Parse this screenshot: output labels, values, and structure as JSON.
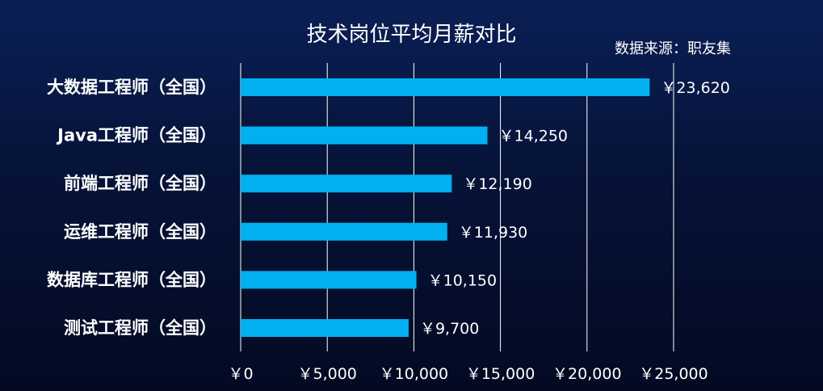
{
  "chart_data": {
    "type": "bar",
    "orientation": "horizontal",
    "title": "技术岗位平均月薪对比",
    "source": "数据来源：职友集",
    "categories": [
      "大数据工程师（全国）",
      "Java工程师（全国）",
      "前端工程师（全国）",
      "运维工程师（全国）",
      "数据库工程师（全国）",
      "测试工程师（全国）"
    ],
    "values": [
      23620,
      14250,
      12190,
      11930,
      10150,
      9700
    ],
    "value_labels": [
      "￥23,620",
      "￥14,250",
      "￥12,190",
      "￥11,930",
      "￥10,150",
      "￥9,700"
    ],
    "xlim": [
      0,
      25000
    ],
    "x_ticks": [
      0,
      5000,
      10000,
      15000,
      20000,
      25000
    ],
    "x_tick_labels": [
      "￥0",
      "￥5,000",
      "￥10,000",
      "￥15,000",
      "￥20,000",
      "￥25,000"
    ],
    "grid": true,
    "colors": {
      "bar": "#00b0f0",
      "gridline": "#ffffff",
      "text": "#ffffff"
    }
  }
}
